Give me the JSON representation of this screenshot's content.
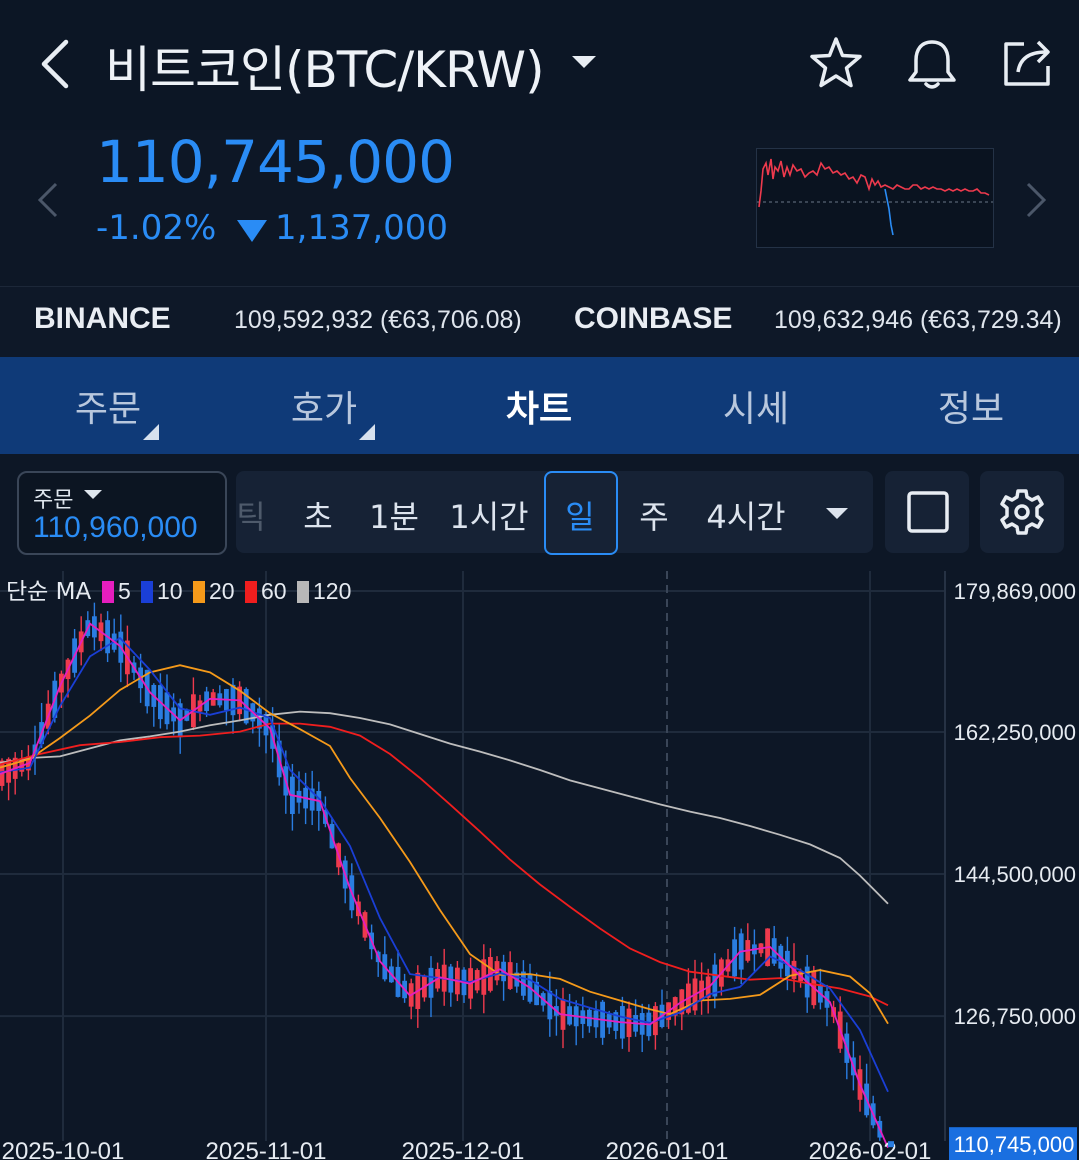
{
  "header": {
    "title": "비트코인(BTC/KRW)",
    "icons": [
      "back-arrow-icon",
      "star-icon",
      "bell-icon",
      "share-icon"
    ]
  },
  "price": {
    "current": "110,745,000",
    "change_percent": "-1.02%",
    "change_amount": "1,137,000",
    "direction": "down",
    "color": "#2a8cf5"
  },
  "exchanges": [
    {
      "name": "BINANCE",
      "value": "109,592,932 (€63,706.08)"
    },
    {
      "name": "COINBASE",
      "value": "109,632,946 (€63,729.34)"
    }
  ],
  "tabs": [
    {
      "label": "주문",
      "active": false
    },
    {
      "label": "호가",
      "active": false
    },
    {
      "label": "차트",
      "active": true
    },
    {
      "label": "시세",
      "active": false
    },
    {
      "label": "정보",
      "active": false
    }
  ],
  "toolbar": {
    "order_label": "주문",
    "order_value": "110,960,000",
    "intervals": [
      {
        "label": "틱",
        "faded": true
      },
      {
        "label": "초"
      },
      {
        "label": "1분"
      },
      {
        "label": "1시간"
      },
      {
        "label": "일",
        "active": true
      },
      {
        "label": "주"
      },
      {
        "label": "4시간"
      }
    ]
  },
  "legend": {
    "prefix": "단순 MA",
    "items": [
      {
        "label": "5",
        "color": "#e61ebe"
      },
      {
        "label": "10",
        "color": "#1a3fd6"
      },
      {
        "label": "20",
        "color": "#f59a1a"
      },
      {
        "label": "60",
        "color": "#f01e1e"
      },
      {
        "label": "120",
        "color": "#b8b8b8"
      }
    ]
  },
  "chart_data": {
    "type": "candlestick",
    "interval": "일",
    "y_tick_labels": [
      "179,869,000",
      "162,250,000",
      "144,500,000",
      "126,750,000"
    ],
    "y_ticks": [
      179869000,
      162250000,
      144500000,
      126750000
    ],
    "x_tick_labels": [
      "2025-10-01",
      "2025-11-01",
      "2025-12-01",
      "2026-01-01",
      "2026-02-01"
    ],
    "current_price_label": "110,745,000",
    "current_price": 110745000,
    "up_color": "#ee3a4d",
    "down_color": "#2a7de1",
    "ma_series": [
      {
        "name": "120",
        "color": "#bdbdbd",
        "points": [
          [
            0,
            158400000
          ],
          [
            30,
            159000000
          ],
          [
            60,
            159200000
          ],
          [
            90,
            160200000
          ],
          [
            120,
            161200000
          ],
          [
            150,
            161700000
          ],
          [
            180,
            162300000
          ],
          [
            210,
            163100000
          ],
          [
            240,
            163700000
          ],
          [
            270,
            164400000
          ],
          [
            300,
            164800000
          ],
          [
            330,
            164600000
          ],
          [
            360,
            164000000
          ],
          [
            390,
            163200000
          ],
          [
            420,
            162000000
          ],
          [
            450,
            160800000
          ],
          [
            480,
            159800000
          ],
          [
            510,
            158700000
          ],
          [
            540,
            157500000
          ],
          [
            570,
            156200000
          ],
          [
            600,
            155200000
          ],
          [
            630,
            154200000
          ],
          [
            660,
            153200000
          ],
          [
            690,
            152300000
          ],
          [
            720,
            151500000
          ],
          [
            750,
            150500000
          ],
          [
            780,
            149400000
          ],
          [
            810,
            148200000
          ],
          [
            840,
            146500000
          ],
          [
            860,
            144300000
          ],
          [
            888,
            140800000
          ]
        ]
      },
      {
        "name": "60",
        "color": "#f01e1e",
        "points": [
          [
            0,
            158200000
          ],
          [
            40,
            159500000
          ],
          [
            80,
            160600000
          ],
          [
            120,
            161000000
          ],
          [
            160,
            161600000
          ],
          [
            200,
            161800000
          ],
          [
            240,
            162300000
          ],
          [
            270,
            163300000
          ],
          [
            300,
            163300000
          ],
          [
            330,
            162900000
          ],
          [
            360,
            161800000
          ],
          [
            390,
            159500000
          ],
          [
            420,
            156500000
          ],
          [
            450,
            153200000
          ],
          [
            480,
            149800000
          ],
          [
            510,
            146300000
          ],
          [
            540,
            143200000
          ],
          [
            570,
            140400000
          ],
          [
            600,
            137700000
          ],
          [
            630,
            135200000
          ],
          [
            660,
            133500000
          ],
          [
            690,
            132300000
          ],
          [
            720,
            131800000
          ],
          [
            750,
            131300000
          ],
          [
            780,
            131500000
          ],
          [
            810,
            130800000
          ],
          [
            840,
            130200000
          ],
          [
            870,
            129200000
          ],
          [
            888,
            128100000
          ]
        ]
      },
      {
        "name": "20",
        "color": "#f59a1a",
        "points": [
          [
            0,
            157800000
          ],
          [
            30,
            158900000
          ],
          [
            60,
            161500000
          ],
          [
            90,
            164300000
          ],
          [
            120,
            167500000
          ],
          [
            150,
            169700000
          ],
          [
            180,
            170600000
          ],
          [
            210,
            169700000
          ],
          [
            240,
            167400000
          ],
          [
            270,
            164600000
          ],
          [
            300,
            162600000
          ],
          [
            330,
            160500000
          ],
          [
            350,
            156500000
          ],
          [
            380,
            151500000
          ],
          [
            410,
            146000000
          ],
          [
            440,
            140000000
          ],
          [
            470,
            134500000
          ],
          [
            500,
            131900000
          ],
          [
            530,
            132000000
          ],
          [
            560,
            131400000
          ],
          [
            590,
            129800000
          ],
          [
            620,
            128700000
          ],
          [
            650,
            127600000
          ],
          [
            670,
            127000000
          ],
          [
            700,
            128700000
          ],
          [
            730,
            128900000
          ],
          [
            760,
            129400000
          ],
          [
            790,
            131800000
          ],
          [
            820,
            132500000
          ],
          [
            850,
            131700000
          ],
          [
            870,
            129600000
          ],
          [
            888,
            125800000
          ]
        ]
      },
      {
        "name": "10",
        "color": "#1a3fd6",
        "points": [
          [
            0,
            157200000
          ],
          [
            30,
            157800000
          ],
          [
            60,
            165500000
          ],
          [
            90,
            171700000
          ],
          [
            120,
            174000000
          ],
          [
            150,
            170000000
          ],
          [
            180,
            165200000
          ],
          [
            210,
            164400000
          ],
          [
            240,
            165300000
          ],
          [
            270,
            164000000
          ],
          [
            290,
            157500000
          ],
          [
            320,
            153800000
          ],
          [
            350,
            148000000
          ],
          [
            380,
            139000000
          ],
          [
            410,
            132000000
          ],
          [
            440,
            131500000
          ],
          [
            470,
            131000000
          ],
          [
            500,
            132100000
          ],
          [
            530,
            131300000
          ],
          [
            560,
            128900000
          ],
          [
            590,
            127800000
          ],
          [
            620,
            126700000
          ],
          [
            650,
            125900000
          ],
          [
            680,
            127200000
          ],
          [
            710,
            129500000
          ],
          [
            740,
            130400000
          ],
          [
            770,
            134200000
          ],
          [
            800,
            132500000
          ],
          [
            830,
            130200000
          ],
          [
            860,
            125000000
          ],
          [
            888,
            117300000
          ]
        ]
      },
      {
        "name": "5",
        "color": "#e61ebe",
        "points": [
          [
            0,
            157000000
          ],
          [
            30,
            158400000
          ],
          [
            60,
            168000000
          ],
          [
            90,
            175800000
          ],
          [
            120,
            173000000
          ],
          [
            150,
            167200000
          ],
          [
            180,
            163700000
          ],
          [
            210,
            166400000
          ],
          [
            240,
            166200000
          ],
          [
            270,
            162700000
          ],
          [
            290,
            154400000
          ],
          [
            320,
            153600000
          ],
          [
            350,
            142700000
          ],
          [
            380,
            133600000
          ],
          [
            410,
            129300000
          ],
          [
            440,
            131600000
          ],
          [
            470,
            130800000
          ],
          [
            500,
            132600000
          ],
          [
            530,
            130300000
          ],
          [
            560,
            127000000
          ],
          [
            590,
            126500000
          ],
          [
            620,
            126000000
          ],
          [
            650,
            125700000
          ],
          [
            680,
            128400000
          ],
          [
            710,
            130500000
          ],
          [
            740,
            134800000
          ],
          [
            770,
            135400000
          ],
          [
            800,
            131800000
          ],
          [
            830,
            128500000
          ],
          [
            860,
            118200000
          ],
          [
            888,
            110300000
          ]
        ]
      }
    ]
  }
}
